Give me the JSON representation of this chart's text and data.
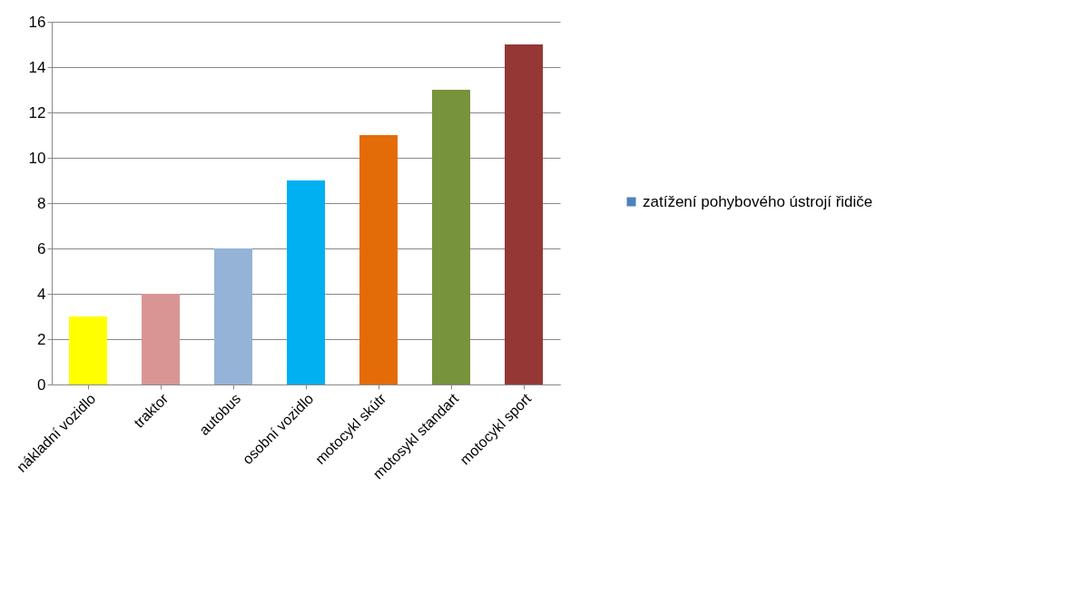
{
  "chart_data": {
    "type": "bar",
    "categories": [
      "nákladní vozidlo",
      "traktor",
      "autobus",
      "osobní vozidlo",
      "motocykl skútr",
      "motosykl standart",
      "motocykl sport"
    ],
    "series": [
      {
        "name": "zatížení pohybového ústrojí řidiče",
        "color": "#4f81bd",
        "colors": [
          "#ffff00",
          "#d99594",
          "#95b3d7",
          "#00b0f0",
          "#e36c09",
          "#77933c",
          "#953735"
        ],
        "values": [
          3,
          4,
          6,
          9,
          11,
          13,
          15
        ]
      }
    ],
    "ylim": [
      0,
      16
    ],
    "yticks": [
      0,
      2,
      4,
      6,
      8,
      10,
      12,
      14,
      16
    ],
    "grid": "y",
    "legend": "right"
  }
}
